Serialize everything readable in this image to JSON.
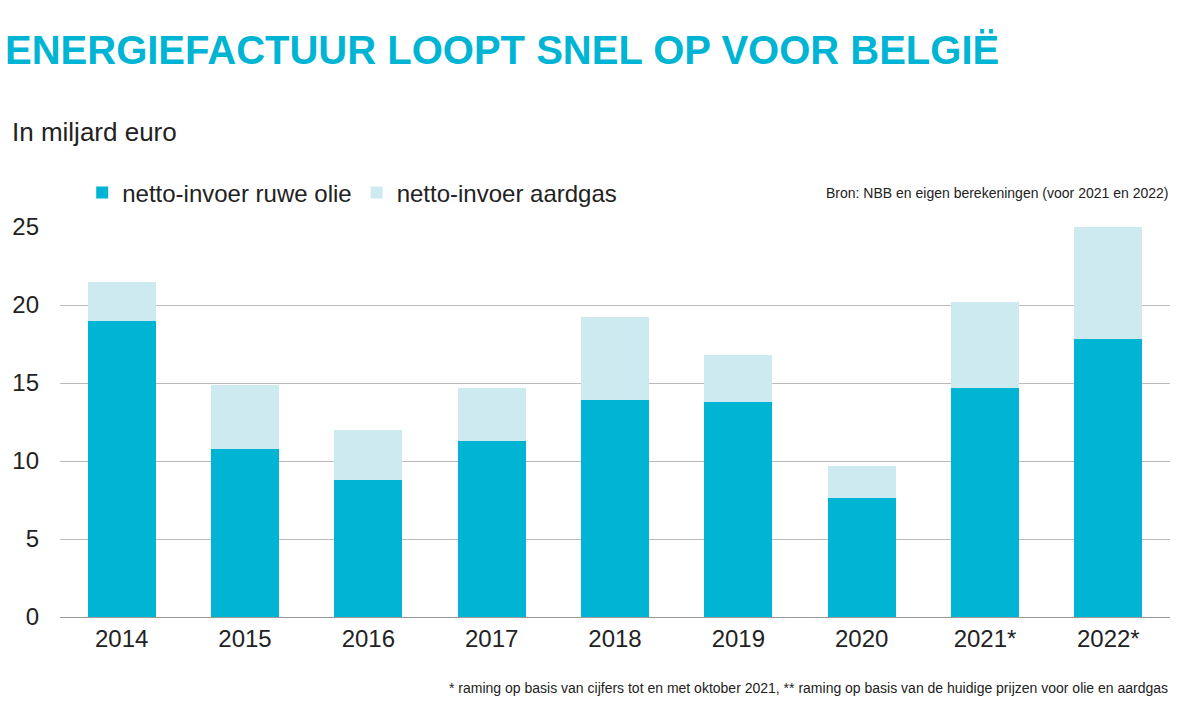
{
  "chart_data": {
    "type": "bar",
    "title": "ENERGIEFACTUUR LOOPT SNEL OP VOOR BELGIË",
    "subtitle": "In miljard euro",
    "annotations": [
      "Bron: NBB en eigen berekeningen (voor 2021 en 2022)",
      "* raming op basis van cijfers tot en met oktober 2021, ** raming op basis van de huidige prijzen voor olie en aardgas"
    ],
    "categories": [
      "2014",
      "2015",
      "2016",
      "2017",
      "2018",
      "2019",
      "2020",
      "2021*",
      "2022*"
    ],
    "series": [
      {
        "name": "netto-invoer ruwe olie",
        "color": "#00b4d4",
        "values": [
          19.0,
          10.8,
          8.8,
          11.3,
          13.9,
          13.8,
          7.6,
          14.7,
          17.8
        ]
      },
      {
        "name": "netto-invoer aardgas",
        "color": "#cdeaf1",
        "values": [
          2.5,
          4.1,
          3.2,
          3.4,
          5.3,
          3.0,
          2.1,
          5.5,
          7.2
        ]
      }
    ],
    "stacked": true,
    "ylim": [
      0,
      25
    ],
    "yticks": [
      0,
      5,
      10,
      15,
      20,
      25
    ],
    "grid": true,
    "legend": "top left"
  }
}
